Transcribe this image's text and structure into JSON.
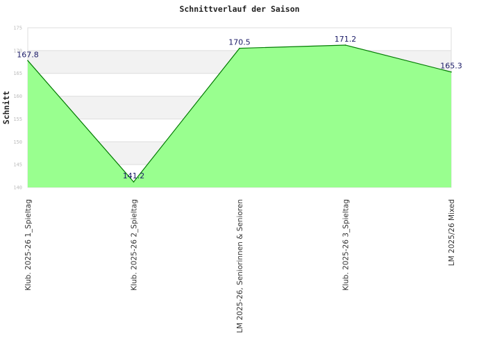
{
  "chart_data": {
    "type": "area",
    "title": "Schnittverlauf der Saison",
    "ylabel": "Schnitt",
    "xlabel": "",
    "categories": [
      "Klub. 2025-26  1_Spieltag",
      "Klub. 2025-26  2_Spieltag",
      "LM 2025-26, Seniorinnen & Senioren",
      "Klub. 2025-26  3_Spieltag",
      "LM 2025/26 Mixed"
    ],
    "values": [
      167.8,
      141.2,
      170.5,
      171.2,
      165.3
    ],
    "data_labels": [
      "167.8",
      "141.2",
      "170.5",
      "171.2",
      "165.3"
    ],
    "ylim": [
      140,
      175
    ],
    "yticks": [
      140,
      145,
      150,
      155,
      160,
      165,
      170,
      175
    ],
    "grid": true,
    "legend": "none",
    "colors": {
      "fill": "#99ff8f",
      "line": "#007a00",
      "band": "#f2f2f2",
      "grid": "#dddddd",
      "label": "#1a1a66"
    }
  }
}
